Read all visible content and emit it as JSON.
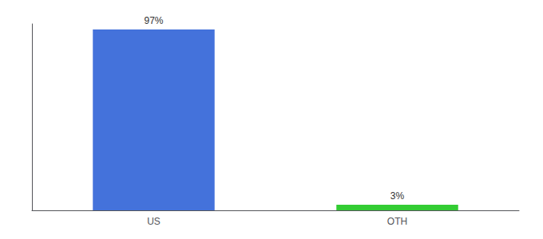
{
  "chart_data": {
    "type": "bar",
    "categories": [
      "US",
      "OTH"
    ],
    "values": [
      97,
      3
    ],
    "value_labels": [
      "97%",
      "3%"
    ],
    "colors": [
      "#4472db",
      "#33cc33"
    ],
    "ylim": [
      0,
      100
    ],
    "grid": false,
    "data_labels": true,
    "tick_labels": "x"
  }
}
